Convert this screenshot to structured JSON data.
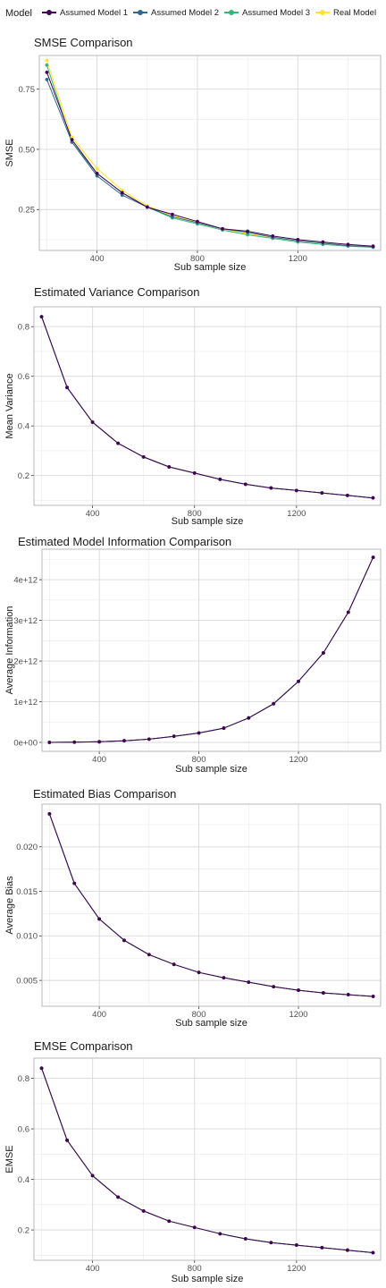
{
  "legend": {
    "title": "Model",
    "items": [
      {
        "label": "Assumed Model 1",
        "color": "#440154"
      },
      {
        "label": "Assumed Model 2",
        "color": "#31688e"
      },
      {
        "label": "Assumed Model 3",
        "color": "#35b779"
      },
      {
        "label": "Real Model",
        "color": "#fde725"
      }
    ]
  },
  "chart_data": [
    {
      "type": "line",
      "title": "SMSE Comparison",
      "xlabel": "Sub sample size",
      "ylabel": "SMSE",
      "x": [
        200,
        300,
        400,
        500,
        600,
        700,
        800,
        900,
        1000,
        1100,
        1200,
        1300,
        1400,
        1500
      ],
      "xticks": [
        400,
        800,
        1200
      ],
      "xtick_labels": [
        "400",
        "800",
        "1200"
      ],
      "yticks": [
        0.25,
        0.5,
        0.75
      ],
      "ytick_labels": [
        "0.25",
        "0.50",
        "0.75"
      ],
      "xlim": [
        170,
        1530
      ],
      "ylim": [
        0.08,
        0.89
      ],
      "grid": true,
      "series": [
        {
          "name": "Assumed Model 1",
          "values": [
            0.82,
            0.54,
            0.4,
            0.32,
            0.26,
            0.23,
            0.2,
            0.17,
            0.16,
            0.14,
            0.125,
            0.115,
            0.105,
            0.098
          ]
        },
        {
          "name": "Assumed Model 2",
          "values": [
            0.79,
            0.53,
            0.39,
            0.31,
            0.26,
            0.22,
            0.195,
            0.17,
            0.155,
            0.135,
            0.12,
            0.11,
            0.1,
            0.095
          ]
        },
        {
          "name": "Assumed Model 3",
          "values": [
            0.85,
            0.53,
            0.4,
            0.32,
            0.26,
            0.215,
            0.19,
            0.165,
            0.145,
            0.13,
            0.115,
            0.105,
            0.098,
            0.093
          ]
        },
        {
          "name": "Real Model",
          "values": [
            0.87,
            0.55,
            0.42,
            0.33,
            0.265,
            0.225,
            0.195,
            0.17,
            0.15,
            0.135,
            0.12,
            0.11,
            0.1,
            0.095
          ]
        }
      ]
    },
    {
      "type": "line",
      "title": "Estimated Variance Comparison",
      "xlabel": "Sub sample size",
      "ylabel": "Mean Variance",
      "x": [
        200,
        300,
        400,
        500,
        600,
        700,
        800,
        900,
        1000,
        1100,
        1200,
        1300,
        1400,
        1500
      ],
      "xticks": [
        400,
        800,
        1200
      ],
      "xtick_labels": [
        "400",
        "800",
        "1200"
      ],
      "yticks": [
        0.2,
        0.4,
        0.6,
        0.8
      ],
      "ytick_labels": [
        "0.2",
        "0.4",
        "0.6",
        "0.8"
      ],
      "xlim": [
        170,
        1530
      ],
      "ylim": [
        0.08,
        0.88
      ],
      "grid": true,
      "series": [
        {
          "name": "Assumed Model 1",
          "values": [
            0.84,
            0.555,
            0.415,
            0.33,
            0.275,
            0.235,
            0.21,
            0.185,
            0.165,
            0.15,
            0.14,
            0.13,
            0.12,
            0.11
          ]
        },
        {
          "name": "Assumed Model 2",
          "values": [
            0.84,
            0.555,
            0.415,
            0.33,
            0.275,
            0.235,
            0.21,
            0.185,
            0.165,
            0.15,
            0.14,
            0.13,
            0.12,
            0.11
          ]
        },
        {
          "name": "Assumed Model 3",
          "values": [
            0.84,
            0.555,
            0.415,
            0.33,
            0.275,
            0.235,
            0.21,
            0.185,
            0.165,
            0.15,
            0.14,
            0.13,
            0.12,
            0.11
          ]
        },
        {
          "name": "Real Model",
          "values": [
            0.84,
            0.555,
            0.415,
            0.33,
            0.275,
            0.235,
            0.21,
            0.185,
            0.165,
            0.15,
            0.14,
            0.13,
            0.12,
            0.11
          ]
        }
      ]
    },
    {
      "type": "line",
      "title": "Estimated Model Information Comparison",
      "xlabel": "Sub sample size",
      "ylabel": "Average Information",
      "x": [
        200,
        300,
        400,
        500,
        600,
        700,
        800,
        900,
        1000,
        1100,
        1200,
        1300,
        1400,
        1500
      ],
      "xticks": [
        400,
        800,
        1200
      ],
      "xtick_labels": [
        "400",
        "800",
        "1200"
      ],
      "yticks": [
        0,
        1000000000000.0,
        2000000000000.0,
        3000000000000.0,
        4000000000000.0
      ],
      "ytick_labels": [
        "0e+00",
        "1e+12",
        "2e+12",
        "3e+12",
        "4e+12"
      ],
      "xlim": [
        170,
        1530
      ],
      "ylim": [
        -220000000000.0,
        4750000000000.0
      ],
      "grid": true,
      "series": [
        {
          "name": "Assumed Model 1",
          "values": [
            0,
            5000000000.0,
            15000000000.0,
            40000000000.0,
            80000000000.0,
            150000000000.0,
            230000000000.0,
            350000000000.0,
            600000000000.0,
            950000000000.0,
            1500000000000.0,
            2200000000000.0,
            3200000000000.0,
            4550000000000.0
          ]
        },
        {
          "name": "Assumed Model 2",
          "values": [
            0,
            5000000000.0,
            15000000000.0,
            40000000000.0,
            80000000000.0,
            150000000000.0,
            230000000000.0,
            350000000000.0,
            600000000000.0,
            950000000000.0,
            1500000000000.0,
            2200000000000.0,
            3200000000000.0,
            4550000000000.0
          ]
        },
        {
          "name": "Assumed Model 3",
          "values": [
            0,
            5000000000.0,
            15000000000.0,
            40000000000.0,
            80000000000.0,
            150000000000.0,
            230000000000.0,
            350000000000.0,
            600000000000.0,
            950000000000.0,
            1500000000000.0,
            2200000000000.0,
            3200000000000.0,
            4550000000000.0
          ]
        },
        {
          "name": "Real Model",
          "values": [
            0,
            5000000000.0,
            15000000000.0,
            40000000000.0,
            80000000000.0,
            150000000000.0,
            230000000000.0,
            350000000000.0,
            600000000000.0,
            950000000000.0,
            1500000000000.0,
            2200000000000.0,
            3200000000000.0,
            4550000000000.0
          ]
        }
      ]
    },
    {
      "type": "line",
      "title": "Estimated Bias Comparison",
      "xlabel": "Sub sample size",
      "ylabel": "Average Bias",
      "x": [
        200,
        300,
        400,
        500,
        600,
        700,
        800,
        900,
        1000,
        1100,
        1200,
        1300,
        1400,
        1500
      ],
      "xticks": [
        400,
        800,
        1200
      ],
      "xtick_labels": [
        "400",
        "800",
        "1200"
      ],
      "yticks": [
        0.005,
        0.01,
        0.015,
        0.02
      ],
      "ytick_labels": [
        "0.005",
        "0.010",
        "0.015",
        "0.020"
      ],
      "xlim": [
        170,
        1530
      ],
      "ylim": [
        0.0021,
        0.0248
      ],
      "grid": true,
      "series": [
        {
          "name": "Assumed Model 1",
          "values": [
            0.0237,
            0.0159,
            0.0119,
            0.0095,
            0.0079,
            0.0068,
            0.0059,
            0.0053,
            0.0048,
            0.0043,
            0.0039,
            0.0036,
            0.0034,
            0.0032
          ]
        },
        {
          "name": "Assumed Model 2",
          "values": [
            0.0237,
            0.0159,
            0.0119,
            0.0095,
            0.0079,
            0.0068,
            0.0059,
            0.0053,
            0.0048,
            0.0043,
            0.0039,
            0.0036,
            0.0034,
            0.0032
          ]
        },
        {
          "name": "Assumed Model 3",
          "values": [
            0.0237,
            0.0159,
            0.0119,
            0.0095,
            0.0079,
            0.0068,
            0.0059,
            0.0053,
            0.0048,
            0.0043,
            0.0039,
            0.0036,
            0.0034,
            0.0032
          ]
        },
        {
          "name": "Real Model",
          "values": [
            0.0237,
            0.0159,
            0.0119,
            0.0095,
            0.0079,
            0.0068,
            0.0059,
            0.0053,
            0.0048,
            0.0043,
            0.0039,
            0.0036,
            0.0034,
            0.0032
          ]
        }
      ]
    },
    {
      "type": "line",
      "title": "EMSE Comparison",
      "xlabel": "Sub sample size",
      "ylabel": "EMSE",
      "x": [
        200,
        300,
        400,
        500,
        600,
        700,
        800,
        900,
        1000,
        1100,
        1200,
        1300,
        1400,
        1500
      ],
      "xticks": [
        400,
        800,
        1200
      ],
      "xtick_labels": [
        "400",
        "800",
        "1200"
      ],
      "yticks": [
        0.2,
        0.4,
        0.6,
        0.8
      ],
      "ytick_labels": [
        "0.2",
        "0.4",
        "0.6",
        "0.8"
      ],
      "xlim": [
        170,
        1530
      ],
      "ylim": [
        0.08,
        0.88
      ],
      "grid": true,
      "series": [
        {
          "name": "Assumed Model 1",
          "values": [
            0.84,
            0.555,
            0.415,
            0.33,
            0.275,
            0.235,
            0.21,
            0.185,
            0.165,
            0.15,
            0.14,
            0.13,
            0.12,
            0.11
          ]
        },
        {
          "name": "Assumed Model 2",
          "values": [
            0.84,
            0.555,
            0.415,
            0.33,
            0.275,
            0.235,
            0.21,
            0.185,
            0.165,
            0.15,
            0.14,
            0.13,
            0.12,
            0.11
          ]
        },
        {
          "name": "Assumed Model 3",
          "values": [
            0.84,
            0.555,
            0.415,
            0.33,
            0.275,
            0.235,
            0.21,
            0.185,
            0.165,
            0.15,
            0.14,
            0.13,
            0.12,
            0.11
          ]
        },
        {
          "name": "Real Model",
          "values": [
            0.84,
            0.555,
            0.415,
            0.33,
            0.275,
            0.235,
            0.21,
            0.185,
            0.165,
            0.15,
            0.14,
            0.13,
            0.12,
            0.11
          ]
        }
      ]
    }
  ]
}
